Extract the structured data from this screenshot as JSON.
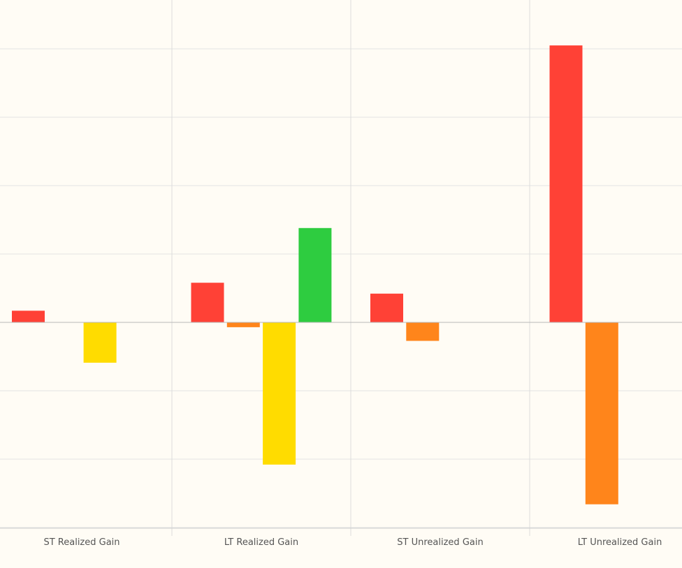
{
  "chart_data": {
    "type": "bar",
    "categories": [
      "ST Realized Gain",
      "LT Realized Gain",
      "ST Unrealized Gain",
      "LT Unrealized Gain"
    ],
    "series": [
      {
        "color": "#ff4136",
        "values": [
          0.17,
          0.58,
          0.42,
          4.05
        ]
      },
      {
        "color": "#ff851b",
        "values": [
          0,
          -0.07,
          -0.27,
          -2.66
        ]
      },
      {
        "color": "#ffdc00",
        "values": [
          -0.59,
          -2.08,
          0,
          0
        ]
      },
      {
        "color": "#2ecc40",
        "values": [
          0,
          1.38,
          0,
          0
        ]
      }
    ],
    "ylim": [
      -3,
      4.6
    ],
    "y_gridlines": [
      -3,
      -2,
      -1,
      0,
      1,
      2,
      3,
      4
    ],
    "grid": true
  }
}
